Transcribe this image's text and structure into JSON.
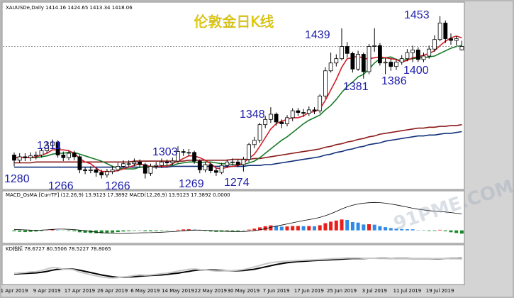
{
  "chart_data": [
    {
      "type": "candlestick",
      "title": "伦敦金日K线",
      "header": "XAUUSDe,Daily",
      "watermark": "91PME.COM",
      "categories": [
        "1 Apr 2019",
        null,
        null,
        null,
        null,
        null,
        "9 Apr 2019",
        null,
        null,
        null,
        null,
        null,
        "17 Apr 2019",
        null,
        null,
        null,
        null,
        null,
        "26 Apr 2019",
        null,
        null,
        null,
        null,
        null,
        "6 May 2019",
        null,
        null,
        null,
        null,
        null,
        "14 May 2019",
        null,
        null,
        null,
        null,
        null,
        "22 May 2019",
        null,
        null,
        null,
        null,
        null,
        "30 May 2019",
        null,
        null,
        null,
        null,
        null,
        "7 Jun 2019",
        null,
        null,
        null,
        null,
        null,
        "17 Jun 2019",
        null,
        null,
        null,
        null,
        null,
        "25 Jun 2019",
        null,
        null,
        null,
        null,
        null,
        "3 Jul 2019",
        null,
        null,
        null,
        null,
        null,
        "11 Jul 2019",
        null,
        null,
        null,
        null,
        null,
        "19 Jul 2019",
        null,
        null,
        null,
        null
      ],
      "open": [
        1293,
        1287,
        1291,
        1290,
        1292,
        1293,
        1298,
        1304,
        1308,
        1293,
        1290,
        1295,
        1291,
        1276,
        1275,
        1276,
        1273,
        1270,
        1274,
        1276,
        1280,
        1283,
        1283,
        1285,
        1282,
        1272,
        1280,
        1281,
        1285,
        1284,
        1286,
        1297,
        1296,
        1296,
        1286,
        1276,
        1282,
        1275,
        1273,
        1281,
        1285,
        1285,
        1282,
        1288,
        1305,
        1310,
        1328,
        1334,
        1340,
        1331,
        1329,
        1336,
        1344,
        1342,
        1341,
        1345,
        1344,
        1361,
        1390,
        1399,
        1404,
        1418,
        1410,
        1392,
        1409,
        1389,
        1418,
        1419,
        1399,
        1400,
        1395,
        1400,
        1404,
        1411,
        1414,
        1403,
        1407,
        1415,
        1426,
        1445,
        1427,
        1425,
        1414.16
      ],
      "high": [
        1296,
        1295,
        1295,
        1296,
        1297,
        1301,
        1308,
        1311,
        1310,
        1297,
        1298,
        1298,
        1293,
        1279,
        1280,
        1279,
        1276,
        1277,
        1280,
        1284,
        1287,
        1287,
        1289,
        1288,
        1284,
        1283,
        1285,
        1289,
        1288,
        1290,
        1303,
        1300,
        1300,
        1298,
        1288,
        1285,
        1284,
        1278,
        1284,
        1288,
        1289,
        1288,
        1291,
        1307,
        1314,
        1330,
        1338,
        1348,
        1342,
        1334,
        1339,
        1347,
        1347,
        1346,
        1349,
        1348,
        1363,
        1394,
        1411,
        1409,
        1439,
        1423,
        1412,
        1413,
        1411,
        1421,
        1439,
        1422,
        1405,
        1404,
        1404,
        1408,
        1415,
        1419,
        1417,
        1411,
        1419,
        1431,
        1453,
        1448,
        1433,
        1430,
        1424.65
      ],
      "low": [
        1280,
        1284,
        1286,
        1286,
        1288,
        1290,
        1295,
        1300,
        1290,
        1286,
        1287,
        1287,
        1272,
        1271,
        1272,
        1268,
        1266,
        1267,
        1271,
        1274,
        1278,
        1279,
        1280,
        1278,
        1266,
        1269,
        1277,
        1278,
        1281,
        1281,
        1284,
        1292,
        1292,
        1283,
        1272,
        1273,
        1272,
        1269,
        1271,
        1278,
        1281,
        1279,
        1274,
        1285,
        1301,
        1307,
        1324,
        1330,
        1327,
        1324,
        1326,
        1332,
        1338,
        1337,
        1338,
        1340,
        1341,
        1358,
        1388,
        1395,
        1402,
        1405,
        1388,
        1390,
        1381,
        1386,
        1412,
        1396,
        1386,
        1390,
        1391,
        1397,
        1401,
        1400,
        1400,
        1400,
        1404,
        1412,
        1424,
        1422,
        1420,
        1419,
        1413.34
      ],
      "close": [
        1287,
        1291,
        1290,
        1292,
        1293,
        1298,
        1304,
        1308,
        1293,
        1290,
        1295,
        1291,
        1276,
        1275,
        1276,
        1273,
        1270,
        1274,
        1276,
        1280,
        1283,
        1283,
        1285,
        1282,
        1272,
        1280,
        1281,
        1285,
        1284,
        1286,
        1297,
        1296,
        1296,
        1286,
        1276,
        1282,
        1275,
        1273,
        1281,
        1285,
        1285,
        1282,
        1288,
        1305,
        1310,
        1328,
        1334,
        1340,
        1331,
        1329,
        1336,
        1344,
        1342,
        1341,
        1345,
        1344,
        1361,
        1390,
        1399,
        1404,
        1418,
        1410,
        1392,
        1409,
        1389,
        1418,
        1419,
        1399,
        1400,
        1395,
        1400,
        1404,
        1411,
        1414,
        1403,
        1407,
        1415,
        1426,
        1445,
        1427,
        1425,
        1427,
        1418.06
      ],
      "ylim": [
        1255,
        1465
      ],
      "annotations": [
        "1280",
        "1311",
        "1266",
        "1266",
        "1303",
        "1269",
        "1274",
        "1348",
        "1439",
        "1381",
        "1386",
        "1400",
        "1453"
      ],
      "overlays": [
        {
          "color": "#8b1a1a",
          "values": [
            1284,
            1284,
            1284,
            1284,
            1285,
            1285,
            1285,
            1285,
            1285,
            1285,
            1285,
            1285,
            1285,
            1285,
            1285,
            1285,
            1285,
            1285,
            1285,
            1285,
            1285,
            1285,
            1286,
            1286,
            1286,
            1286,
            1286,
            1286,
            1286,
            1286,
            1286,
            1286,
            1287,
            1287,
            1287,
            1287,
            1287,
            1287,
            1287,
            1287,
            1288,
            1288,
            1288,
            1288,
            1289,
            1289,
            1290,
            1291,
            1292,
            1293,
            1294,
            1295,
            1296,
            1297,
            1298,
            1299,
            1300,
            1302,
            1303,
            1305,
            1306,
            1308,
            1309,
            1311,
            1312,
            1314,
            1315,
            1317,
            1318,
            1319,
            1320,
            1321,
            1322,
            1323,
            1324,
            1324,
            1325,
            1325,
            1326,
            1326,
            1327,
            1327,
            1328
          ]
        },
        {
          "color": "#10307a",
          "values": [
            1279,
            1279,
            1279,
            1279,
            1279,
            1279,
            1279,
            1279,
            1279,
            1279,
            1279,
            1279,
            1279,
            1279,
            1279,
            1279,
            1279,
            1279,
            1279,
            1279,
            1279,
            1279,
            1279,
            1279,
            1279,
            1279,
            1279,
            1279,
            1279,
            1280,
            1280,
            1280,
            1280,
            1280,
            1280,
            1280,
            1280,
            1280,
            1280,
            1280,
            1280,
            1280,
            1280,
            1281,
            1281,
            1281,
            1282,
            1282,
            1283,
            1284,
            1285,
            1286,
            1287,
            1288,
            1289,
            1290,
            1291,
            1293,
            1294,
            1296,
            1297,
            1299,
            1300,
            1302,
            1303,
            1305,
            1306,
            1307,
            1309,
            1310,
            1311,
            1312,
            1313,
            1314,
            1315,
            1315,
            1316,
            1316,
            1317,
            1318,
            1318,
            1319,
            1320
          ]
        },
        {
          "color": "#1a7a2a",
          "values": [
            1290,
            1290,
            1290,
            1290,
            1290,
            1291,
            1292,
            1294,
            1295,
            1295,
            1296,
            1296,
            1294,
            1292,
            1290,
            1288,
            1286,
            1283,
            1280,
            1278,
            1277,
            1277,
            1277,
            1279,
            1279,
            1279,
            1280,
            1280,
            1281,
            1281,
            1283,
            1284,
            1285,
            1285,
            1284,
            1285,
            1285,
            1284,
            1283,
            1283,
            1282,
            1282,
            1282,
            1284,
            1286,
            1290,
            1295,
            1300,
            1305,
            1310,
            1314,
            1319,
            1324,
            1329,
            1333,
            1336,
            1339,
            1345,
            1350,
            1357,
            1365,
            1372,
            1377,
            1383,
            1386,
            1392,
            1399,
            1404,
            1405,
            1406,
            1403,
            1402,
            1403,
            1404,
            1405,
            1405,
            1406,
            1407,
            1410,
            1413,
            1416,
            1418,
            1419
          ]
        },
        {
          "color": "#d0202a",
          "values": [
            1290,
            1290,
            1290,
            1290,
            1291,
            1293,
            1295,
            1299,
            1299,
            1299,
            1298,
            1295,
            1289,
            1285,
            1283,
            1278,
            1274,
            1274,
            1274,
            1275,
            1277,
            1279,
            1281,
            1283,
            1281,
            1280,
            1280,
            1280,
            1280,
            1283,
            1286,
            1289,
            1292,
            1292,
            1290,
            1287,
            1283,
            1278,
            1277,
            1279,
            1280,
            1281,
            1284,
            1289,
            1294,
            1303,
            1313,
            1323,
            1329,
            1332,
            1334,
            1336,
            1336,
            1338,
            1342,
            1343,
            1346,
            1356,
            1368,
            1380,
            1394,
            1404,
            1405,
            1407,
            1404,
            1404,
            1405,
            1406,
            1405,
            1404,
            1403,
            1400,
            1402,
            1405,
            1406,
            1408,
            1410,
            1413,
            1419,
            1424,
            1428,
            1430,
            1428
          ]
        }
      ]
    },
    {
      "type": "bar",
      "header": "MACD_OsMA [CurrTF] (12,26,9) 13.9123 17.3892 MACD(12,26,9) 13.9123 17.3892 0.0000",
      "values": [
        -1,
        -1.5,
        -1.8,
        -1.5,
        -1.2,
        -0.6,
        0.3,
        1,
        0.4,
        -0.2,
        -0.6,
        -1,
        -2,
        -2.5,
        -2.8,
        -3,
        -3.1,
        -2.8,
        -2.4,
        -1.8,
        -1.2,
        -0.8,
        -0.4,
        -0.3,
        -0.9,
        -1,
        -0.8,
        -0.5,
        -0.3,
        -0.1,
        0.6,
        1,
        1.2,
        0.8,
        -0.2,
        -0.6,
        -1.2,
        -1.6,
        -1.4,
        -1,
        -0.8,
        -0.8,
        -0.3,
        0.8,
        1.8,
        3.2,
        4.4,
        5.3,
        4.6,
        3.9,
        4.1,
        4.6,
        4.6,
        4.4,
        4.5,
        4.3,
        5.4,
        7.6,
        9.2,
        10.4,
        11.5,
        11,
        8.8,
        8.2,
        6.2,
        6.5,
        6,
        4.4,
        3.4,
        2.4,
        1.8,
        1.4,
        1.2,
        1.1,
        0.3,
        -0.3,
        -0.6,
        -0.6,
        0.6,
        -0.9,
        -2,
        -2.8,
        -3.4769
      ],
      "colors": {
        "rise": "#e8201c",
        "fall": "#2f8ae8",
        "negative": "#1c8a2c"
      },
      "signal": {
        "color": "#000000",
        "values": [
          1,
          0.8,
          0.5,
          0.3,
          0.2,
          0.3,
          0.6,
          1,
          1.3,
          1.3,
          1.1,
          0.8,
          0.3,
          -0.4,
          -1.1,
          -1.8,
          -2.4,
          -2.9,
          -3.2,
          -3.3,
          -3.3,
          -3.1,
          -2.9,
          -2.6,
          -2.5,
          -2.4,
          -2.2,
          -2,
          -1.7,
          -1.4,
          -1,
          -0.5,
          0,
          0.3,
          0.3,
          0.1,
          -0.2,
          -0.6,
          -0.9,
          -1.1,
          -1.2,
          -1.3,
          -1.2,
          -0.9,
          -0.3,
          0.6,
          1.8,
          3.2,
          4.5,
          5.6,
          6.8,
          8,
          9.2,
          10.3,
          11.4,
          12.4,
          13.7,
          15.5,
          17.6,
          20,
          22.6,
          24.9,
          26.6,
          27.9,
          28.7,
          29.2,
          29.5,
          29.3,
          28.7,
          27.9,
          26.9,
          25.8,
          24.6,
          23.4,
          22.4,
          21.6,
          20.9,
          20.3,
          19.9,
          19.4,
          18.8,
          18.1,
          17.3892
        ]
      },
      "ylim": [
        -10,
        32
      ]
    },
    {
      "type": "line",
      "header": "KD指标 78.6727 80.5506 78.5227 78.8065",
      "series": [
        {
          "color": "#000000",
          "values": [
            28,
            29,
            30,
            31,
            32,
            34,
            37,
            41,
            44,
            45,
            45,
            44,
            41,
            37,
            33,
            29,
            25,
            22,
            19,
            17,
            17,
            18,
            19,
            21,
            22,
            23,
            24,
            25,
            27,
            29,
            31,
            34,
            37,
            40,
            42,
            42,
            42,
            41,
            40,
            39,
            39,
            39,
            40,
            42,
            44,
            48,
            52,
            56,
            60,
            63,
            66,
            68,
            70,
            71,
            72,
            73,
            74,
            75,
            76,
            77,
            78,
            79,
            80,
            80,
            80,
            81,
            81,
            81,
            81,
            80,
            80,
            80,
            80,
            79,
            79,
            79,
            79,
            79,
            79,
            80,
            80,
            80,
            80.5506
          ]
        },
        {
          "color": "#c8c8c8",
          "values": [
            30,
            32,
            33,
            35,
            36,
            40,
            45,
            50,
            48,
            45,
            44,
            42,
            35,
            30,
            26,
            22,
            18,
            16,
            15,
            16,
            18,
            20,
            23,
            25,
            24,
            25,
            27,
            29,
            31,
            34,
            38,
            41,
            44,
            45,
            43,
            42,
            40,
            38,
            38,
            39,
            40,
            41,
            43,
            47,
            52,
            57,
            62,
            66,
            68,
            70,
            71,
            72,
            73,
            74,
            75,
            76,
            77,
            78,
            79,
            80,
            81,
            82,
            82,
            82,
            81,
            81,
            81,
            80,
            80,
            80,
            79,
            79,
            79,
            79,
            79,
            79,
            79,
            80,
            80,
            80,
            79,
            79,
            78.6727
          ]
        }
      ],
      "ylim": [
        0,
        100
      ]
    }
  ]
}
